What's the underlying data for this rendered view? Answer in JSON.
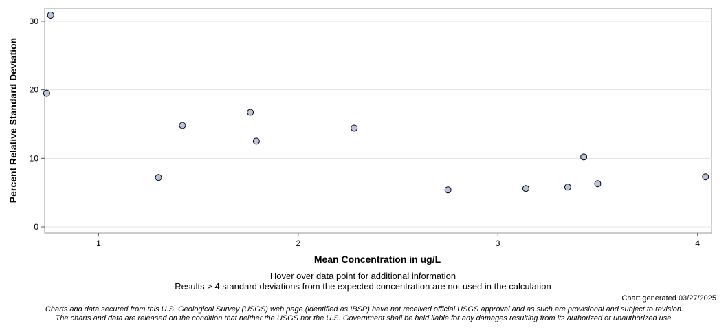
{
  "chart_data": {
    "type": "scatter",
    "title": "",
    "xlabel": "Mean Concentration in ug/L",
    "ylabel": "Percent Relative Standard Deviation",
    "xlim": [
      0.73,
      4.07
    ],
    "ylim": [
      -0.9,
      31.9
    ],
    "xticks": [
      1,
      2,
      3,
      4
    ],
    "yticks": [
      0,
      10,
      20,
      30
    ],
    "grid": "horizontal",
    "marker_fill": "#b9c4dc",
    "marker_edge": "#000000",
    "points": [
      {
        "x": 0.76,
        "y": 30.9
      },
      {
        "x": 0.74,
        "y": 19.5
      },
      {
        "x": 1.3,
        "y": 7.2
      },
      {
        "x": 1.42,
        "y": 14.8
      },
      {
        "x": 1.76,
        "y": 16.7
      },
      {
        "x": 1.79,
        "y": 12.5
      },
      {
        "x": 2.28,
        "y": 14.4
      },
      {
        "x": 2.75,
        "y": 5.4
      },
      {
        "x": 3.14,
        "y": 5.6
      },
      {
        "x": 3.35,
        "y": 5.8
      },
      {
        "x": 3.43,
        "y": 10.2
      },
      {
        "x": 3.5,
        "y": 6.3
      },
      {
        "x": 4.04,
        "y": 7.3
      }
    ]
  },
  "notes": {
    "hover": "Hover over data point for additional information",
    "results": "Results > 4 standard deviations from the expected concentration are not used in the calculation",
    "generated": "Chart generated 03/27/2025",
    "disclaimer_1": "Charts and data secured from this U.S. Geological Survey (USGS) web page (identified as IBSP) have not received official USGS approval and as such are provisional and subject to revision.",
    "disclaimer_2": "The charts and data are released on the condition that neither the USGS nor the U.S. Government shall be held liable for any damages resulting from its authorized or unauthorized use."
  }
}
